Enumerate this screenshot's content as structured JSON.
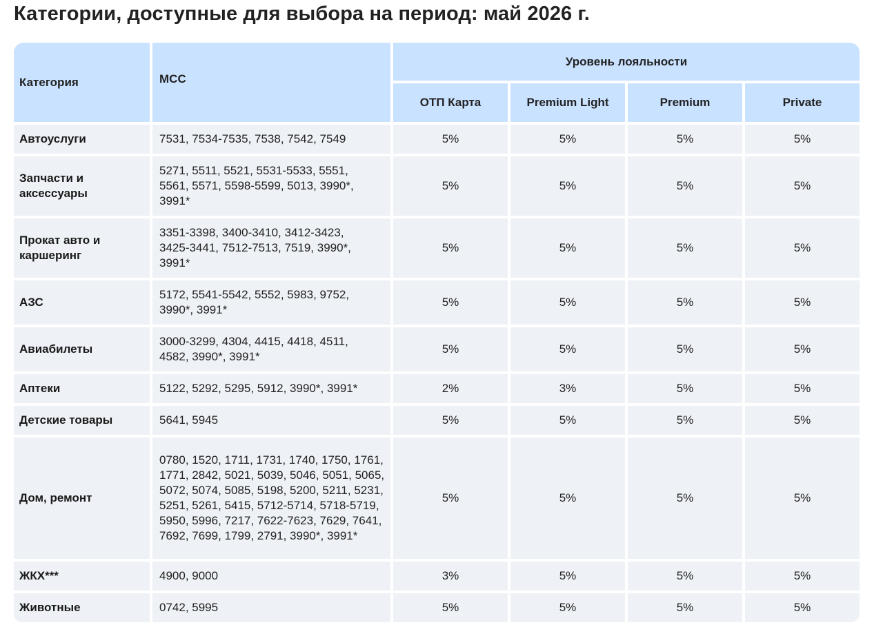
{
  "title": "Категории, доступные для выбора на период: май 2026 г.",
  "headers": {
    "category": "Категория",
    "mcc": "МСС",
    "loyalty": "Уровень лояльности",
    "tiers": [
      "ОТП Карта",
      "Premium Light",
      "Premium",
      "Private"
    ]
  },
  "rows": [
    {
      "category": "Автоуслуги",
      "mcc": "7531, 7534-7535, 7538, 7542, 7549",
      "values": [
        "5%",
        "5%",
        "5%",
        "5%"
      ]
    },
    {
      "category": "Запчасти и аксессуары",
      "mcc": "5271, 5511, 5521, 5531-5533, 5551, 5561, 5571, 5598-5599, 5013, 3990*, 3991*",
      "values": [
        "5%",
        "5%",
        "5%",
        "5%"
      ]
    },
    {
      "category": "Прокат авто и каршеринг",
      "mcc": "3351-3398, 3400-3410, 3412-3423, 3425-3441, 7512-7513, 7519, 3990*, 3991*",
      "values": [
        "5%",
        "5%",
        "5%",
        "5%"
      ]
    },
    {
      "category": "АЗС",
      "mcc": "5172, 5541-5542, 5552, 5983, 9752, 3990*, 3991*",
      "values": [
        "5%",
        "5%",
        "5%",
        "5%"
      ]
    },
    {
      "category": "Авиабилеты",
      "mcc": "3000-3299, 4304, 4415, 4418, 4511, 4582, 3990*, 3991*",
      "values": [
        "5%",
        "5%",
        "5%",
        "5%"
      ]
    },
    {
      "category": "Аптеки",
      "mcc": "5122, 5292, 5295, 5912, 3990*, 3991*",
      "values": [
        "2%",
        "3%",
        "5%",
        "5%"
      ]
    },
    {
      "category": "Детские товары",
      "mcc": "5641, 5945",
      "values": [
        "5%",
        "5%",
        "5%",
        "5%"
      ]
    },
    {
      "category": "Дом, ремонт",
      "mcc": "0780, 1520, 1711, 1731, 1740, 1750, 1761, 1771, 2842, 5021, 5039, 5046, 5051, 5065, 5072, 5074, 5085, 5198, 5200, 5211, 5231, 5251, 5261, 5415, 5712-5714, 5718-5719, 5950, 5996, 7217, 7622-7623, 7629, 7641, 7692, 7699, 1799, 2791, 3990*, 3991*",
      "values": [
        "5%",
        "5%",
        "5%",
        "5%"
      ]
    },
    {
      "category": "ЖКХ***",
      "mcc": "4900, 9000",
      "values": [
        "3%",
        "5%",
        "5%",
        "5%"
      ]
    },
    {
      "category": "Животные",
      "mcc": "0742, 5995",
      "values": [
        "5%",
        "5%",
        "5%",
        "5%"
      ]
    }
  ]
}
